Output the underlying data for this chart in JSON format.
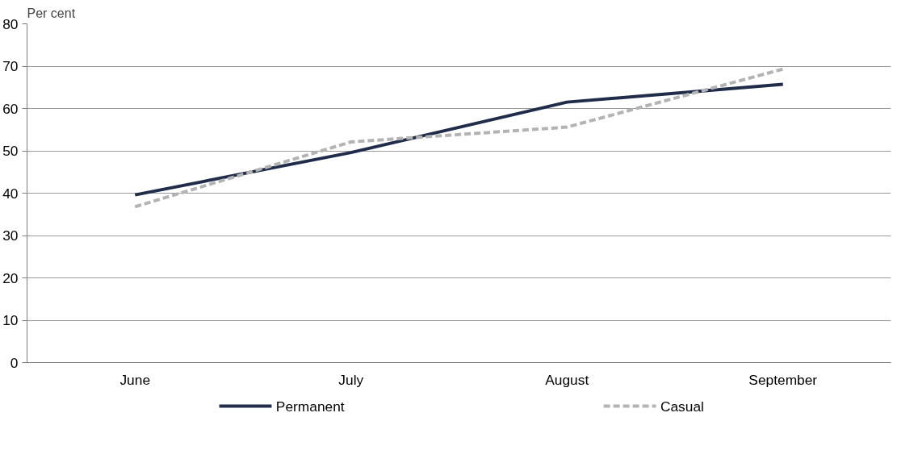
{
  "chart_data": {
    "type": "line",
    "ylabel": "Per cent",
    "categories": [
      "June",
      "July",
      "August",
      "September"
    ],
    "series": [
      {
        "name": "Permanent",
        "color": "#1f2d4b",
        "line_style": "solid",
        "values": [
          39.6,
          49.6,
          61.5,
          65.7
        ]
      },
      {
        "name": "Casual",
        "color": "#b3b3b3",
        "line_style": "dashed",
        "values": [
          36.8,
          52.1,
          55.6,
          69.3
        ]
      }
    ],
    "ylim": [
      0,
      80
    ],
    "yticks": [
      0,
      10,
      20,
      30,
      40,
      50,
      60,
      70,
      80
    ],
    "grid": "y",
    "legend": "bottom"
  }
}
